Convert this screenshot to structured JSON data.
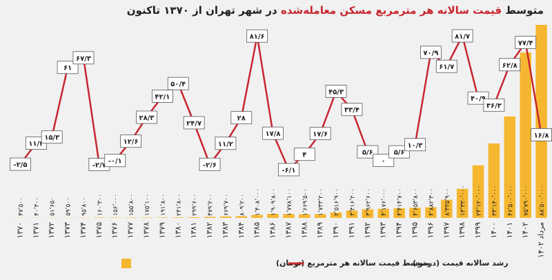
{
  "chart_data": {
    "type": "bar",
    "title_prefix": "متوسط",
    "title_highlight": "قیمت سالانه هر مترمربع مسکن معامله‌شده",
    "title_suffix": "در شهر تهران از ۱۳۷۰ تاکنون",
    "categories": [
      "۱۳۷۰",
      "۱۳۷۱",
      "۱۳۷۲",
      "۱۳۷۳",
      "۱۳۷۴",
      "۱۳۷۵",
      "۱۳۷۶",
      "۱۳۷۷",
      "۱۳۷۸",
      "۱۳۷۹",
      "۱۳۸۰",
      "۱۳۸۱",
      "۱۳۸۲",
      "۱۳۸۳",
      "۱۳۸۴",
      "۱۳۸۵",
      "۱۳۸۶",
      "۱۳۸۷",
      "۱۳۸۸",
      "۱۳۸۹",
      "۱۳۹۰",
      "۱۳۹۱",
      "۱۳۹۲",
      "۱۳۹۳",
      "۱۳۹۴",
      "۱۳۹۵",
      "۱۳۹۶",
      "۱۳۹۷",
      "۱۳۹۸",
      "۱۳۹۹",
      "۱۴۰۰",
      "۱۴۰۱",
      "۱۴۰۲",
      "مرداد ۱۴۰۲"
    ],
    "series": [
      {
        "name": "متوسط قیمت سالانه هر مترمربع (تومان)",
        "type": "bar",
        "color": "#f6b730",
        "values": [
          47500,
          40300,
          51650,
          59500,
          95800,
          160300,
          156000,
          155800,
          175100,
          191800,
          241800,
          299600,
          479200,
          669700,
          809200,
          1408000,
          1909800,
          1778100,
          1669500,
          1733200,
          2516900,
          3416200,
          3962600,
          4176000,
          4414700,
          4653800,
          4882300,
          8335900,
          13330000,
          24120000,
          34140000,
          46500000,
          75790000,
          88500000
        ],
        "value_labels": [
          "۴۷٬۵۰۰",
          "۴۰٬۳۰۰",
          "۵۱٬۶۵۰",
          "۵۹٬۵۰۰",
          "۹۵٬۸۰۰",
          "۱۶۰٬۳۰۰",
          "۱۵۶٬۰۰۰",
          "۱۵۵٬۸۰۰",
          "۱۷۵٬۱۰۰",
          "۱۹۱٬۸۰۰",
          "۲۴۱٬۸۰۰",
          "۲۹۹٬۶۰۰",
          "۴۷۹٬۲۰۰",
          "۶۶۹٬۷۰۰",
          "۸۰۹٬۲۰۰",
          "۱٬۴۰۸٬۰۰۰",
          "۱٬۹۰۹٬۸۰۰",
          "۱٬۷۷۸٬۱۰۰",
          "۱٬۶۶۹٬۵۰۰",
          "۱٬۷۳۳٬۲۰۰",
          "۲٬۵۱۶٬۹۰۰",
          "۳٬۴۱۶٬۲۰۰",
          "۳٬۹۶۲٬۶۰۰",
          "۴٬۱۷۶٬۰۰۰",
          "۴٬۴۱۴٬۷۰۰",
          "۴٬۶۵۳٬۸۰۰",
          "۴٬۸۸۲٬۳۰۰",
          "۸٬۳۳۵٬۹۰۰",
          "۱۳٬۳۳۰٬۰۰۰",
          "۲۴٬۱۲۰٬۰۰۰",
          "۳۴٬۱۴۰٬۰۰۰",
          "۴۶٬۵۰۰٬۰۰۰",
          "۷۵٬۷۹۰٬۰۰۰",
          "۸۸٬۵۰۰٬۰۰۰"
        ]
      },
      {
        "name": "رشد سالانه قیمت (درصد)",
        "type": "line",
        "color": "#c8252f",
        "values": [
          -2.5,
          11.3,
          15.3,
          61,
          67.3,
          -2.7,
          -0.1,
          12.6,
          28.3,
          42.1,
          50.4,
          24.7,
          -2.6,
          11.2,
          28,
          81.6,
          17.8,
          -6.1,
          4,
          17.6,
          45.3,
          33.4,
          5.6,
          0,
          5.6,
          10.3,
          70.9,
          61.7,
          81.7,
          40.9,
          36.3,
          62.8,
          77.4,
          16.8
        ],
        "value_labels": [
          "-۲/۵",
          "۱۱/۳",
          "۱۵/۳",
          "۶۱",
          "۶۷/۳",
          "-۲/۷",
          "-۰/۱",
          "۱۲/۶",
          "۲۸/۳",
          "۴۲/۱",
          "۵۰/۴",
          "۲۴/۷",
          "-۲/۶",
          "۱۱/۲",
          "۲۸",
          "۸۱/۶",
          "۱۷/۸",
          "-۶/۱",
          "۴",
          "۱۷/۶",
          "۴۵/۳",
          "۳۳/۴",
          "۵/۶",
          "۰",
          "۵/۶",
          "۱۰/۳",
          "۷۰/۹",
          "۶۱/۷",
          "۸۱/۷",
          "۴۰/۹",
          "۳۶/۳",
          "۶۲/۸",
          "۷۷/۴",
          "۱۶/۸"
        ]
      }
    ]
  }
}
